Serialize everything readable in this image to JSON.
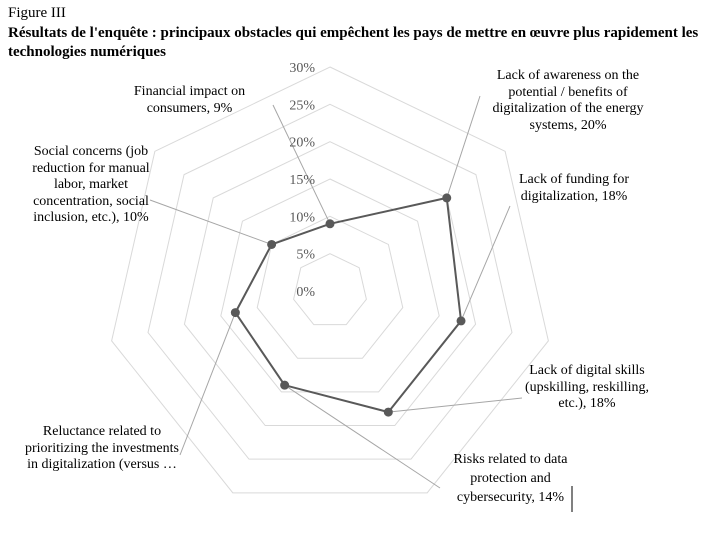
{
  "figure_label": "Figure III",
  "title": "Résultats de l'enquête : principaux obstacles qui empêchent les pays de mettre en œuvre plus rapidement les technologies numériques",
  "chart_data": {
    "type": "radar",
    "axis": {
      "min": 0,
      "max": 30,
      "step": 5,
      "unit": "%",
      "tick_labels": [
        "0%",
        "5%",
        "10%",
        "15%",
        "20%",
        "25%",
        "30%"
      ]
    },
    "grid": true,
    "categories": [
      {
        "label": "Financial impact on consumers, 9%",
        "value": 9
      },
      {
        "label": "Lack of awareness on the potential / benefits of digitalization of the energy systems, 20%",
        "value": 20
      },
      {
        "label": "Lack of funding for digitalization, 18%",
        "value": 18
      },
      {
        "label": "Lack of digital skills (upskilling, reskilling, etc.), 18%",
        "value": 18
      },
      {
        "label": "Risks related to data protection and cybersecurity, 14%",
        "value": 14
      },
      {
        "label": "Reluctance related to prioritizing the investments in digitalization (versus …",
        "value": 13
      },
      {
        "label": "Social concerns (job reduction for manual labor, market concentration, social inclusion, etc.), 10%",
        "value": 10
      }
    ],
    "colors": {
      "series": "#595959",
      "grid": "#d9d9d9",
      "leader": "#a6a6a6"
    }
  }
}
